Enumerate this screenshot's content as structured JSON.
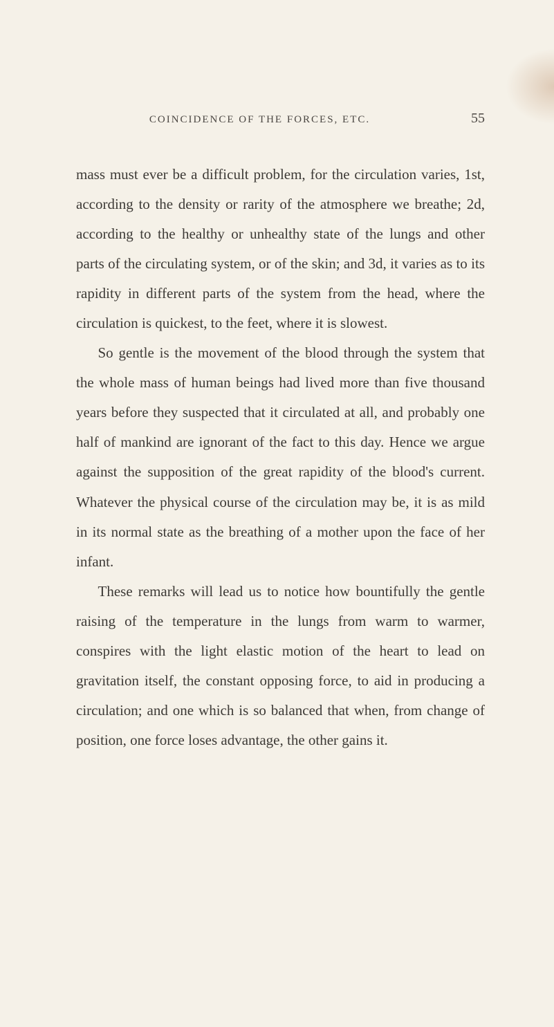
{
  "page": {
    "running_head": "COINCIDENCE OF THE FORCES, ETC.",
    "page_number": "55",
    "background_color": "#f5f1e8",
    "text_color": "#3d3a36",
    "header_color": "#4a4642",
    "body_font_size": 21,
    "body_line_height": 2.05,
    "header_font_size": 15,
    "page_number_font_size": 20
  },
  "paragraphs": {
    "p1": "mass must ever be a difficult problem, for the circulation varies, 1st, according to the density or rarity of the atmosphere we breathe; 2d, according to the healthy or unhealthy state of the lungs and other parts of the circulating system, or of the skin; and 3d, it varies as to its rapidity in different parts of the system from the head, where the circulation is quickest, to the feet, where it is slowest.",
    "p2": "So gentle is the movement of the blood through the system that the whole mass of human beings had lived more than five thousand years before they suspected that it circulated at all, and probably one half of mankind are ignorant of the fact to this day. Hence we argue against the supposition of the great rapidity of the blood's current. Whatever the physical course of the circulation may be, it is as mild in its normal state as the breathing of a mother upon the face of her infant.",
    "p3": "These remarks will lead us to notice how bountifully the gentle raising of the temperature in the lungs from warm to warmer, conspires with the light elastic motion of the heart to lead on gravitation itself, the constant opposing force, to aid in producing a circulation; and one which is so balanced that when, from change of position, one force loses advantage, the other gains it."
  }
}
